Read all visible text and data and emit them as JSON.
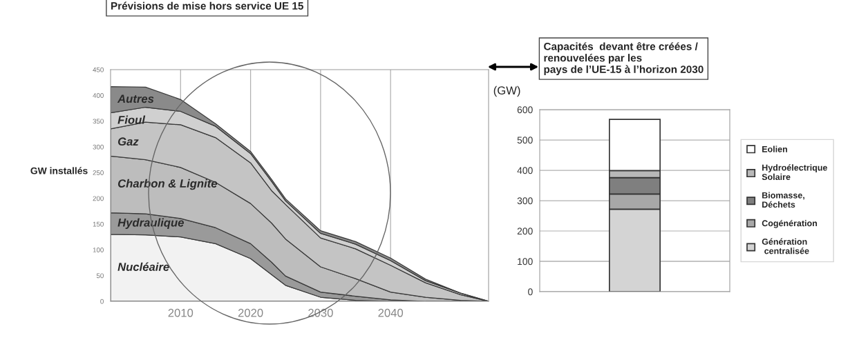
{
  "chart_data": [
    {
      "type": "area",
      "stacked": true,
      "title": "Prévisions de mise hors service UE 15",
      "ylabel": "GW installés",
      "x": [
        2000,
        2005,
        2010,
        2015,
        2020,
        2023,
        2025,
        2030,
        2035,
        2040,
        2045,
        2050,
        2054
      ],
      "series": [
        {
          "name": "Nucléaire",
          "color": "#f2f2f2",
          "values": [
            130,
            129,
            125,
            112,
            83,
            52,
            31,
            8,
            2,
            0,
            0,
            0,
            0
          ]
        },
        {
          "name": "Hydraulique",
          "color": "#9a9a9a",
          "values": [
            42,
            41,
            36,
            31,
            29,
            24,
            18,
            10,
            8,
            3,
            0,
            0,
            0
          ]
        },
        {
          "name": "Charbon & Lignite",
          "color": "#bdbdbd",
          "values": [
            110,
            105,
            99,
            88,
            78,
            76,
            72,
            49,
            34,
            15,
            8,
            2,
            0
          ]
        },
        {
          "name": "Gaz",
          "color": "#c4c4c4",
          "values": [
            53,
            73,
            83,
            87,
            79,
            63,
            67,
            56,
            58,
            52,
            28,
            11,
            0
          ]
        },
        {
          "name": "Fioul",
          "color": "#d0d0d0",
          "values": [
            31,
            29,
            26,
            22,
            18,
            18,
            7,
            9,
            9,
            9,
            4,
            3,
            0
          ]
        },
        {
          "name": "Autres",
          "color": "#8a8a8a",
          "values": [
            51,
            39,
            23,
            5,
            4,
            4,
            4,
            5,
            5,
            5,
            3,
            0,
            0
          ]
        }
      ],
      "xlim": [
        2000,
        2054
      ],
      "xticks": [
        2010,
        2020,
        2030,
        2040
      ],
      "ylim": [
        0,
        450
      ],
      "yticks": [
        0,
        50,
        100,
        150,
        200,
        250,
        300,
        350,
        400,
        450
      ],
      "grid": "x"
    },
    {
      "type": "bar",
      "stacked": true,
      "title": "Capacités  devant être créées /\nrenouvelées par les\npays de l’UE-15 à l’horizon 2030",
      "ylabel": "(GW)",
      "categories": [
        null
      ],
      "series": [
        {
          "name": "Génération\n centralisée",
          "color": "#d4d4d4",
          "values": [
            272
          ]
        },
        {
          "name": "Cogénération",
          "color": "#a8a8a8",
          "values": [
            50
          ]
        },
        {
          "name": "Biomasse,\nDéchets",
          "color": "#7f7f7f",
          "values": [
            54
          ]
        },
        {
          "name": "Hydroélectrique\nSolaire",
          "color": "#b8b8b8",
          "values": [
            23
          ]
        },
        {
          "name": "Eolien",
          "color": "#ffffff",
          "values": [
            169
          ]
        }
      ],
      "ylim": [
        0,
        600
      ],
      "yticks": [
        0,
        100,
        200,
        300,
        400,
        500,
        600
      ],
      "grid": "y",
      "legend": "right"
    }
  ]
}
